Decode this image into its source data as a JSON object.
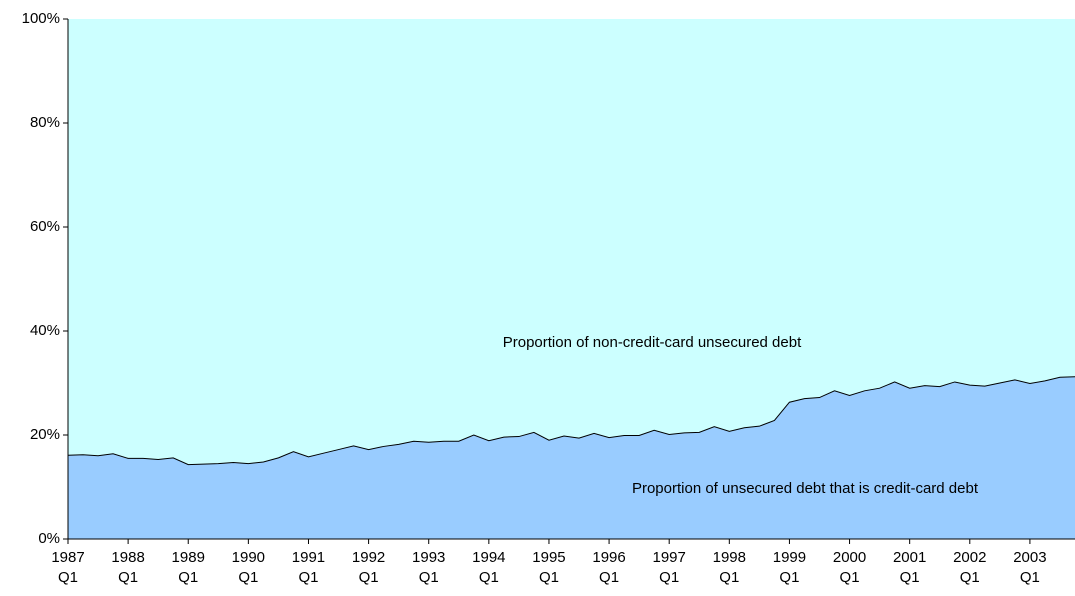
{
  "chart_data": {
    "type": "stacked_area",
    "categories": [
      "1987\nQ1",
      null,
      null,
      null,
      "1988\nQ1",
      null,
      null,
      null,
      "1989\nQ1",
      null,
      null,
      null,
      "1990\nQ1",
      null,
      null,
      null,
      "1991\nQ1",
      null,
      null,
      null,
      "1992\nQ1",
      null,
      null,
      null,
      "1993\nQ1",
      null,
      null,
      null,
      "1994\nQ1",
      null,
      null,
      null,
      "1995\nQ1",
      null,
      null,
      null,
      "1996\nQ1",
      null,
      null,
      null,
      "1997\nQ1",
      null,
      null,
      null,
      "1998\nQ1",
      null,
      null,
      null,
      "1999\nQ1",
      null,
      null,
      null,
      "2000\nQ1",
      null,
      null,
      null,
      "2001\nQ1",
      null,
      null,
      null,
      "2002\nQ1",
      null,
      null,
      null,
      "2003\nQ1",
      null,
      null,
      null
    ],
    "series": [
      {
        "name": "Proportion of unsecured debt that is credit-card debt",
        "color": "#99ccff",
        "values": [
          16.1,
          16.2,
          16.0,
          16.4,
          15.5,
          15.5,
          15.3,
          15.6,
          14.3,
          14.4,
          14.5,
          14.7,
          14.5,
          14.8,
          15.6,
          16.8,
          15.8,
          16.5,
          17.2,
          17.9,
          17.2,
          17.8,
          18.2,
          18.8,
          18.6,
          18.8,
          18.8,
          20.0,
          18.9,
          19.6,
          19.7,
          20.5,
          19.0,
          19.8,
          19.4,
          20.3,
          19.5,
          19.9,
          19.9,
          20.9,
          20.1,
          20.4,
          20.5,
          21.6,
          20.7,
          21.4,
          21.7,
          22.8,
          26.3,
          27.0,
          27.2,
          28.5,
          27.6,
          28.5,
          29.0,
          30.2,
          29.0,
          29.5,
          29.3,
          30.2,
          29.6,
          29.4,
          30.0,
          30.6,
          29.9,
          30.4,
          31.1,
          31.2
        ]
      },
      {
        "name": "Proportion of non-credit-card unsecured debt",
        "color": "#ccffff",
        "values": [
          83.9,
          83.8,
          84.0,
          83.6,
          84.5,
          84.5,
          84.7,
          84.4,
          85.7,
          85.6,
          85.5,
          85.3,
          85.5,
          85.2,
          84.4,
          83.2,
          84.2,
          83.5,
          82.8,
          82.1,
          82.8,
          82.2,
          81.8,
          81.2,
          81.4,
          81.2,
          81.2,
          80.0,
          81.1,
          80.4,
          80.3,
          79.5,
          81.0,
          80.2,
          80.6,
          79.7,
          80.5,
          80.1,
          80.1,
          79.1,
          79.9,
          79.6,
          79.5,
          78.4,
          79.3,
          78.6,
          78.3,
          77.2,
          73.7,
          73.0,
          72.8,
          71.5,
          72.4,
          71.5,
          71.0,
          69.8,
          71.0,
          70.5,
          70.7,
          69.8,
          70.4,
          70.6,
          70.0,
          69.4,
          70.1,
          69.6,
          68.9,
          68.8
        ]
      }
    ],
    "ylim": [
      0,
      100
    ],
    "yticks": [
      {
        "value": 0,
        "label": "0%"
      },
      {
        "value": 20,
        "label": "20%"
      },
      {
        "value": 40,
        "label": "40%"
      },
      {
        "value": 60,
        "label": "60%"
      },
      {
        "value": 80,
        "label": "80%"
      },
      {
        "value": 100,
        "label": "100%"
      }
    ],
    "grid": false
  }
}
